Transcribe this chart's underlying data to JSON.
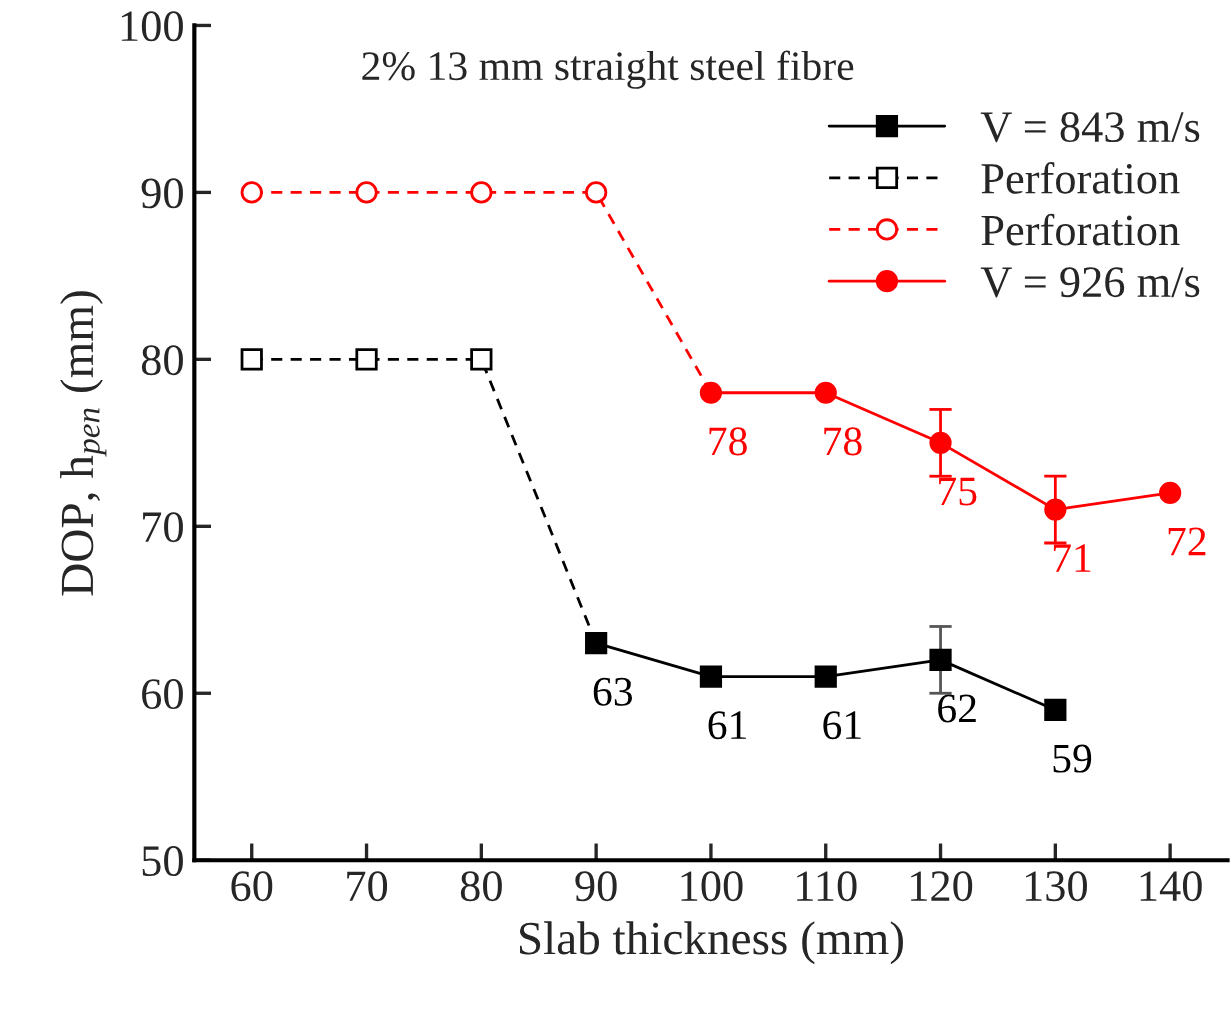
{
  "chart_data": {
    "type": "line",
    "xlabel": "Slab thickness (mm)",
    "ylabel": "DOP, h$_{pen}$ (mm)",
    "annotations": [
      "2% 13 mm straight steel fibre"
    ],
    "xlim": [
      55,
      145
    ],
    "xticks": [
      60,
      70,
      80,
      90,
      100,
      110,
      120,
      130,
      140
    ],
    "ylim": [
      50,
      100
    ],
    "yticks": [
      50,
      60,
      70,
      80,
      90,
      100
    ],
    "grid": false,
    "legend": "top right",
    "series": [
      {
        "name": "V = 843 m/s",
        "color": "#000000",
        "x": [
          90,
          100,
          110,
          120,
          130
        ],
        "values": [
          63,
          61,
          61,
          62,
          59
        ],
        "errors": [
          null,
          null,
          null,
          2,
          null
        ],
        "value_labels": [
          "63",
          "61",
          "61",
          "62",
          "59"
        ],
        "marker": "square",
        "line_style": "solid"
      },
      {
        "name": "Perforation",
        "color": "#000000",
        "x": [
          60,
          70,
          80,
          90
        ],
        "values": [
          80,
          80,
          80,
          63
        ],
        "marker": "square",
        "line_style": "dashed"
      },
      {
        "name": "Perforation",
        "color": "#ff0000",
        "x": [
          60,
          70,
          80,
          90,
          100
        ],
        "values": [
          90,
          90,
          90,
          90,
          78
        ],
        "marker": "circle",
        "line_style": "dashed"
      },
      {
        "name": "V = 926 m/s",
        "color": "#ff0000",
        "x": [
          100,
          110,
          120,
          130,
          140
        ],
        "values": [
          78,
          78,
          75,
          71,
          72
        ],
        "errors": [
          null,
          null,
          2,
          2,
          null
        ],
        "value_labels": [
          "78",
          "78",
          "75",
          "71",
          "72"
        ],
        "marker": "circle",
        "line_style": "solid"
      }
    ]
  }
}
